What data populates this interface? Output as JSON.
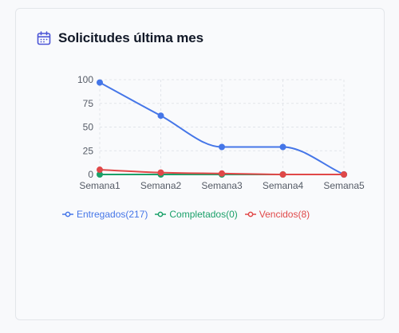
{
  "card": {
    "title": "Solicitudes última mes",
    "icon": "calendar-icon"
  },
  "colors": {
    "Entregados": "#4576e8",
    "Completados": "#1aa069",
    "Vencidos": "#e04848",
    "grid": "#e2e5ea",
    "tick": "#555b66"
  },
  "chart_data": {
    "type": "line",
    "categories": [
      "Semana1",
      "Semana2",
      "Semana3",
      "Semana4",
      "Semana5"
    ],
    "ylim": [
      0,
      100
    ],
    "yticks": [
      0,
      25,
      50,
      75,
      100
    ],
    "grid": true,
    "legend_position": "bottom",
    "series": [
      {
        "name": "Entregados(217)",
        "key": "Entregados",
        "values": [
          97,
          62,
          29,
          29,
          0
        ]
      },
      {
        "name": "Completados(0)",
        "key": "Completados",
        "values": [
          0,
          0,
          0,
          0,
          0
        ]
      },
      {
        "name": "Vencidos(8)",
        "key": "Vencidos",
        "values": [
          5,
          2,
          1,
          0,
          0
        ]
      }
    ]
  }
}
